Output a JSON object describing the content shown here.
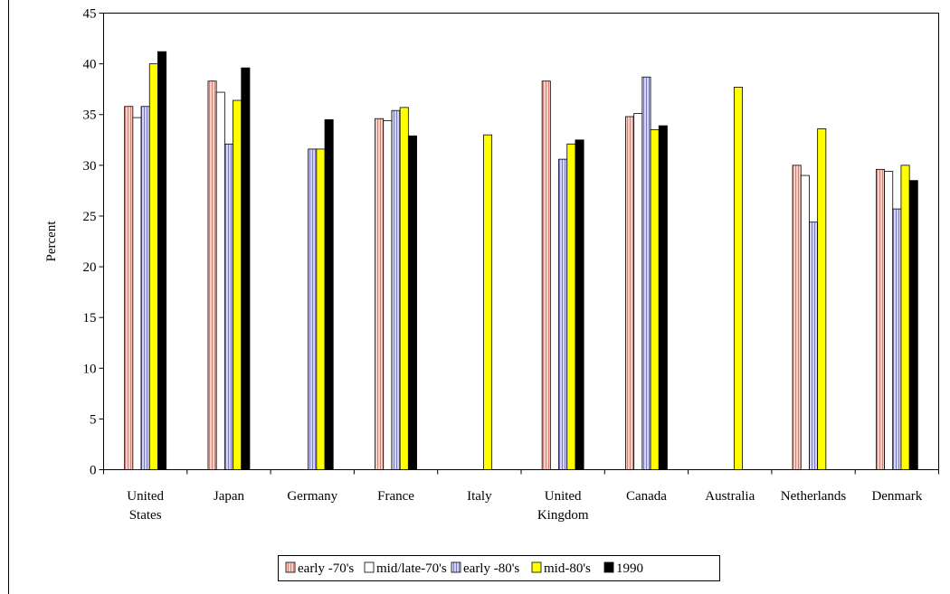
{
  "chart_data": {
    "type": "bar",
    "title": "",
    "xlabel": "",
    "ylabel": "Percent",
    "ylim": [
      0,
      45
    ],
    "yticks": [
      0,
      5,
      10,
      15,
      20,
      25,
      30,
      35,
      40,
      45
    ],
    "grid": false,
    "legend_position": "bottom",
    "categories": [
      [
        "United",
        "States"
      ],
      [
        "Japan"
      ],
      [
        "Germany"
      ],
      [
        "France"
      ],
      [
        "Italy"
      ],
      [
        "United",
        "Kingdom"
      ],
      [
        "Canada"
      ],
      [
        "Australia"
      ],
      [
        "Netherlands"
      ],
      [
        "Denmark"
      ]
    ],
    "series": [
      {
        "name": "early -70's",
        "color": "#f4b4a8",
        "pattern": "vertical-hatch-red",
        "values": [
          35.8,
          38.3,
          null,
          34.6,
          null,
          38.3,
          34.8,
          null,
          30.0,
          29.6
        ]
      },
      {
        "name": "mid/late-70's",
        "color": "#ffffff",
        "pattern": "solid-white",
        "values": [
          34.7,
          37.2,
          null,
          34.4,
          null,
          null,
          35.1,
          null,
          29.0,
          29.4
        ]
      },
      {
        "name": "early -80's",
        "color": "#b4b4ee",
        "pattern": "vertical-hatch-blue",
        "values": [
          35.8,
          32.1,
          31.6,
          35.4,
          null,
          30.6,
          38.7,
          null,
          24.4,
          25.7
        ]
      },
      {
        "name": "mid-80's",
        "color": "#ffff00",
        "pattern": "solid-yellow",
        "values": [
          40.0,
          36.4,
          31.6,
          35.7,
          33.0,
          32.1,
          33.5,
          37.7,
          33.6,
          30.0
        ]
      },
      {
        "name": "1990",
        "color": "#000000",
        "pattern": "solid-black",
        "values": [
          41.2,
          39.6,
          34.5,
          32.9,
          null,
          32.5,
          33.9,
          null,
          null,
          28.5
        ]
      }
    ]
  }
}
